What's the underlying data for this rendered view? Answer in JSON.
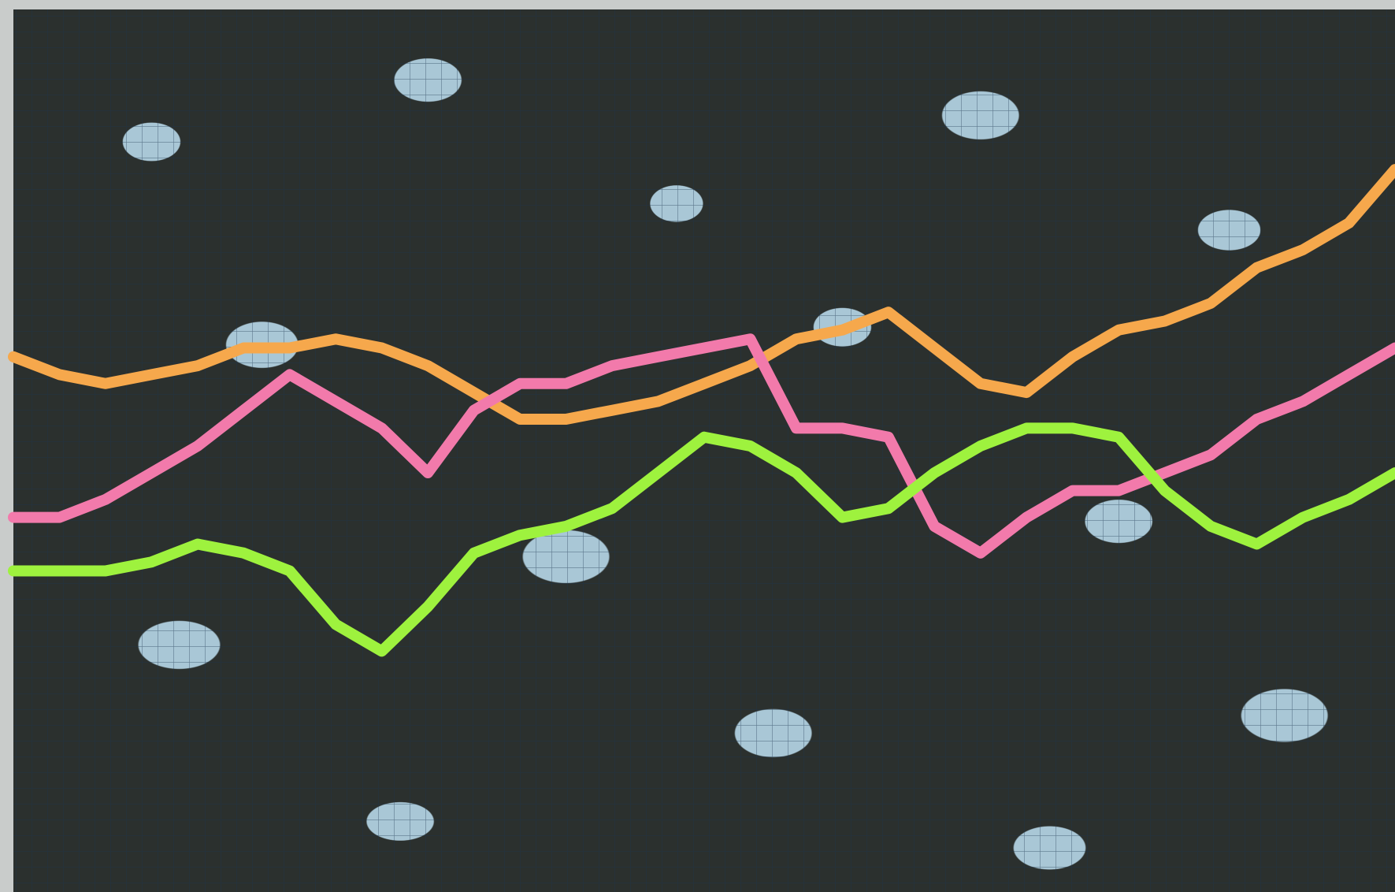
{
  "chart_data": {
    "type": "line",
    "x": [
      0,
      1,
      2,
      3,
      4,
      5,
      6,
      7,
      8,
      9,
      10,
      11,
      12,
      13,
      14,
      15,
      16,
      17,
      18,
      19,
      20,
      21,
      22,
      23,
      24,
      25,
      26,
      27,
      28,
      29,
      30
    ],
    "xlim": [
      0,
      30
    ],
    "ylim": [
      0,
      100
    ],
    "grid": true,
    "series": [
      {
        "color": "#f6a84c",
        "values": [
          60,
          58,
          57,
          58,
          59,
          61,
          61,
          62,
          61,
          59,
          56,
          53,
          53,
          54,
          55,
          57,
          59,
          62,
          63,
          65,
          61,
          57,
          56,
          60,
          63,
          64,
          66,
          70,
          72,
          75,
          81
        ]
      },
      {
        "color": "#f27aab",
        "values": [
          42,
          42,
          44,
          47,
          50,
          54,
          58,
          55,
          52,
          47,
          54,
          57,
          57,
          59,
          60,
          61,
          62,
          52,
          52,
          51,
          41,
          38,
          42,
          45,
          45,
          47,
          49,
          53,
          55,
          58,
          61
        ]
      },
      {
        "color": "#9ef23e",
        "values": [
          36,
          36,
          36,
          37,
          39,
          38,
          36,
          30,
          27,
          32,
          38,
          40,
          41,
          43,
          47,
          51,
          50,
          47,
          42,
          43,
          47,
          50,
          52,
          52,
          51,
          45,
          41,
          39,
          42,
          44,
          47
        ]
      }
    ]
  }
}
